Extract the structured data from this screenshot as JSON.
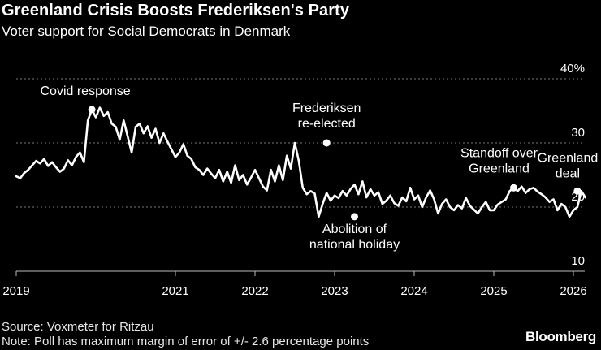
{
  "header": {
    "title": "Greenland Crisis Boosts Frederiksen's Party",
    "subtitle": "Voter support for Social Democrats in Denmark"
  },
  "footer": {
    "source": "Source: Voxmeter for Ritzau",
    "note": "Note: Poll has maximum margin of error of +/- 2.6 percentage points",
    "brand": "Bloomberg"
  },
  "chart_data": {
    "type": "line",
    "title": "Greenland Crisis Boosts Frederiksen's Party",
    "subtitle": "Voter support for Social Democrats in Denmark",
    "xlabel": "",
    "ylabel": "",
    "ylim": [
      10,
      40
    ],
    "xlim": [
      2019.0,
      2026.75
    ],
    "grid": true,
    "x_ticks": [
      2019,
      2021,
      2022,
      2023,
      2024,
      2025,
      2026
    ],
    "y_ticks": [
      {
        "value": 10,
        "label": "10"
      },
      {
        "value": 20,
        "label": "20"
      },
      {
        "value": 30,
        "label": "30"
      },
      {
        "value": 40,
        "label": "40%"
      }
    ],
    "series": [
      {
        "color": "#ffffff",
        "x": [
          2019.0,
          2019.05,
          2019.1,
          2019.15,
          2019.2,
          2019.25,
          2019.3,
          2019.35,
          2019.4,
          2019.45,
          2019.5,
          2019.55,
          2019.6,
          2019.65,
          2019.7,
          2019.75,
          2019.8,
          2019.85,
          2019.9,
          2019.95,
          2020.0,
          2020.05,
          2020.1,
          2020.15,
          2020.2,
          2020.25,
          2020.3,
          2020.35,
          2020.4,
          2020.45,
          2020.5,
          2020.55,
          2020.6,
          2020.65,
          2020.7,
          2020.75,
          2020.8,
          2020.85,
          2020.9,
          2020.95,
          2021.0,
          2021.05,
          2021.1,
          2021.15,
          2021.2,
          2021.25,
          2021.3,
          2021.35,
          2021.4,
          2021.45,
          2021.5,
          2021.55,
          2021.6,
          2021.65,
          2021.7,
          2021.75,
          2021.8,
          2021.85,
          2021.9,
          2021.95,
          2022.0,
          2022.05,
          2022.1,
          2022.15,
          2022.2,
          2022.25,
          2022.3,
          2022.35,
          2022.4,
          2022.45,
          2022.5,
          2022.55,
          2022.6,
          2022.65,
          2022.7,
          2022.75,
          2022.8,
          2022.85,
          2022.9,
          2022.95,
          2023.0,
          2023.05,
          2023.1,
          2023.15,
          2023.2,
          2023.25,
          2023.3,
          2023.35,
          2023.4,
          2023.45,
          2023.5,
          2023.55,
          2023.6,
          2023.65,
          2023.7,
          2023.75,
          2023.8,
          2023.85,
          2023.9,
          2023.95,
          2024.0,
          2024.05,
          2024.1,
          2024.15,
          2024.2,
          2024.25,
          2024.3,
          2024.35,
          2024.4,
          2024.45,
          2024.5,
          2024.55,
          2024.6,
          2024.65,
          2024.7,
          2024.75,
          2024.8,
          2024.85,
          2024.9,
          2024.95,
          2025.0,
          2025.05,
          2025.1,
          2025.15,
          2025.2,
          2025.25,
          2025.3,
          2025.35,
          2025.4,
          2025.45,
          2025.5,
          2025.55,
          2025.6,
          2025.65,
          2025.7,
          2025.75,
          2025.8,
          2025.85,
          2025.9,
          2025.95,
          2026.0,
          2026.05,
          2026.1,
          2026.15
        ],
        "y": [
          24.8,
          24.5,
          25.3,
          25.8,
          26.5,
          27.2,
          26.8,
          27.5,
          26.4,
          27.0,
          26.2,
          25.5,
          26.0,
          27.3,
          26.5,
          27.8,
          28.5,
          27.0,
          33.5,
          35.2,
          34.0,
          35.5,
          34.2,
          34.8,
          33.0,
          32.5,
          30.5,
          33.5,
          31.0,
          28.5,
          32.5,
          33.0,
          31.5,
          32.6,
          30.8,
          32.2,
          30.0,
          31.5,
          30.2,
          29.0,
          27.8,
          28.5,
          29.8,
          28.0,
          27.5,
          26.2,
          25.8,
          25.0,
          26.0,
          25.2,
          24.5,
          25.8,
          24.0,
          25.5,
          23.8,
          26.5,
          24.2,
          25.0,
          23.5,
          24.6,
          25.8,
          24.5,
          23.2,
          22.6,
          25.8,
          24.0,
          26.5,
          24.2,
          28.0,
          26.0,
          30.0,
          27.2,
          23.0,
          22.0,
          22.5,
          22.1,
          18.5,
          20.5,
          22.2,
          21.0,
          21.8,
          21.4,
          22.5,
          21.8,
          22.8,
          23.5,
          22.0,
          24.0,
          21.5,
          22.8,
          21.8,
          22.3,
          20.5,
          21.0,
          21.8,
          20.6,
          20.2,
          21.5,
          20.9,
          23.0,
          21.2,
          21.8,
          20.0,
          21.5,
          22.6,
          21.2,
          19.0,
          20.5,
          21.2,
          20.0,
          19.5,
          20.3,
          19.8,
          21.4,
          20.2,
          19.6,
          19.0,
          20.0,
          20.8,
          19.5,
          19.5,
          20.4,
          20.8,
          21.2,
          22.5,
          23.0,
          22.5,
          23.2,
          22.2,
          22.8,
          23.0,
          22.4,
          22.0,
          21.5,
          20.8,
          21.2,
          19.5,
          20.5,
          20.0,
          18.5,
          19.5,
          20.0,
          22.5,
          21.5
        ]
      }
    ],
    "annotations": [
      {
        "label": [
          "Covid response"
        ],
        "x": 2019.95,
        "y": 35.2
      },
      {
        "label": [
          "Frederiksen",
          "re-elected"
        ],
        "x": 2022.9,
        "y": 30.0
      },
      {
        "label": [
          "Abolition of",
          "national holiday"
        ],
        "x": 2023.25,
        "y": 18.5
      },
      {
        "label": [
          "Standoff over",
          "Greenland"
        ],
        "x": 2025.25,
        "y": 23.0
      },
      {
        "label": [
          "Greenland",
          "deal"
        ],
        "x": 2026.05,
        "y": 22.5
      }
    ]
  }
}
